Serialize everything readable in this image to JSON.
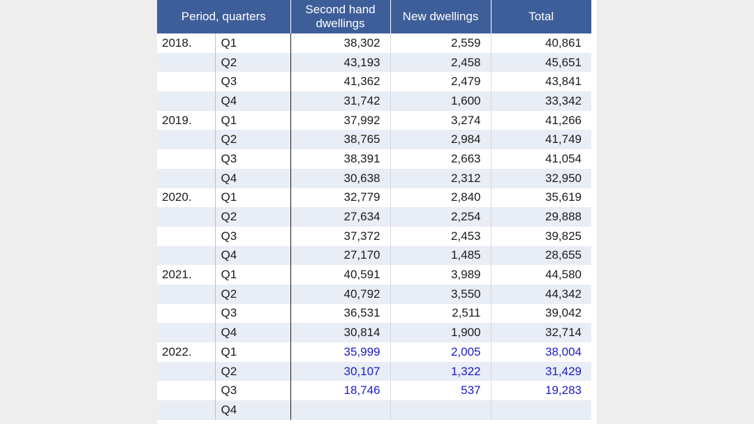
{
  "chart_data": {
    "type": "table",
    "columns": [
      "Period, quarters",
      "Second hand dwellings",
      "New dwellings",
      "Total"
    ],
    "rows": [
      {
        "year": "2018.",
        "quarter": "Q1",
        "second_hand": "38,302",
        "new": "2,559",
        "total": "40,861",
        "provisional": false
      },
      {
        "year": "",
        "quarter": "Q2",
        "second_hand": "43,193",
        "new": "2,458",
        "total": "45,651",
        "provisional": false
      },
      {
        "year": "",
        "quarter": "Q3",
        "second_hand": "41,362",
        "new": "2,479",
        "total": "43,841",
        "provisional": false
      },
      {
        "year": "",
        "quarter": "Q4",
        "second_hand": "31,742",
        "new": "1,600",
        "total": "33,342",
        "provisional": false
      },
      {
        "year": "2019.",
        "quarter": "Q1",
        "second_hand": "37,992",
        "new": "3,274",
        "total": "41,266",
        "provisional": false
      },
      {
        "year": "",
        "quarter": "Q2",
        "second_hand": "38,765",
        "new": "2,984",
        "total": "41,749",
        "provisional": false
      },
      {
        "year": "",
        "quarter": "Q3",
        "second_hand": "38,391",
        "new": "2,663",
        "total": "41,054",
        "provisional": false
      },
      {
        "year": "",
        "quarter": "Q4",
        "second_hand": "30,638",
        "new": "2,312",
        "total": "32,950",
        "provisional": false
      },
      {
        "year": "2020.",
        "quarter": "Q1",
        "second_hand": "32,779",
        "new": "2,840",
        "total": "35,619",
        "provisional": false
      },
      {
        "year": "",
        "quarter": "Q2",
        "second_hand": "27,634",
        "new": "2,254",
        "total": "29,888",
        "provisional": false
      },
      {
        "year": "",
        "quarter": "Q3",
        "second_hand": "37,372",
        "new": "2,453",
        "total": "39,825",
        "provisional": false
      },
      {
        "year": "",
        "quarter": "Q4",
        "second_hand": "27,170",
        "new": "1,485",
        "total": "28,655",
        "provisional": false
      },
      {
        "year": "2021.",
        "quarter": "Q1",
        "second_hand": "40,591",
        "new": "3,989",
        "total": "44,580",
        "provisional": false
      },
      {
        "year": "",
        "quarter": "Q2",
        "second_hand": "40,792",
        "new": "3,550",
        "total": "44,342",
        "provisional": false
      },
      {
        "year": "",
        "quarter": "Q3",
        "second_hand": "36,531",
        "new": "2,511",
        "total": "39,042",
        "provisional": false
      },
      {
        "year": "",
        "quarter": "Q4",
        "second_hand": "30,814",
        "new": "1,900",
        "total": "32,714",
        "provisional": false
      },
      {
        "year": "2022.",
        "quarter": "Q1",
        "second_hand": "35,999",
        "new": "2,005",
        "total": "38,004",
        "provisional": true
      },
      {
        "year": "",
        "quarter": "Q2",
        "second_hand": "30,107",
        "new": "1,322",
        "total": "31,429",
        "provisional": true
      },
      {
        "year": "",
        "quarter": "Q3",
        "second_hand": "18,746",
        "new": "537",
        "total": "19,283",
        "provisional": true
      },
      {
        "year": "",
        "quarter": "Q4",
        "second_hand": "",
        "new": "",
        "total": "",
        "provisional": false
      }
    ],
    "colors": {
      "header_bg": "#3e5e99",
      "header_text": "#ffffff",
      "stripe": "#e9edf5",
      "provisional_text": "#1a1acc"
    }
  }
}
